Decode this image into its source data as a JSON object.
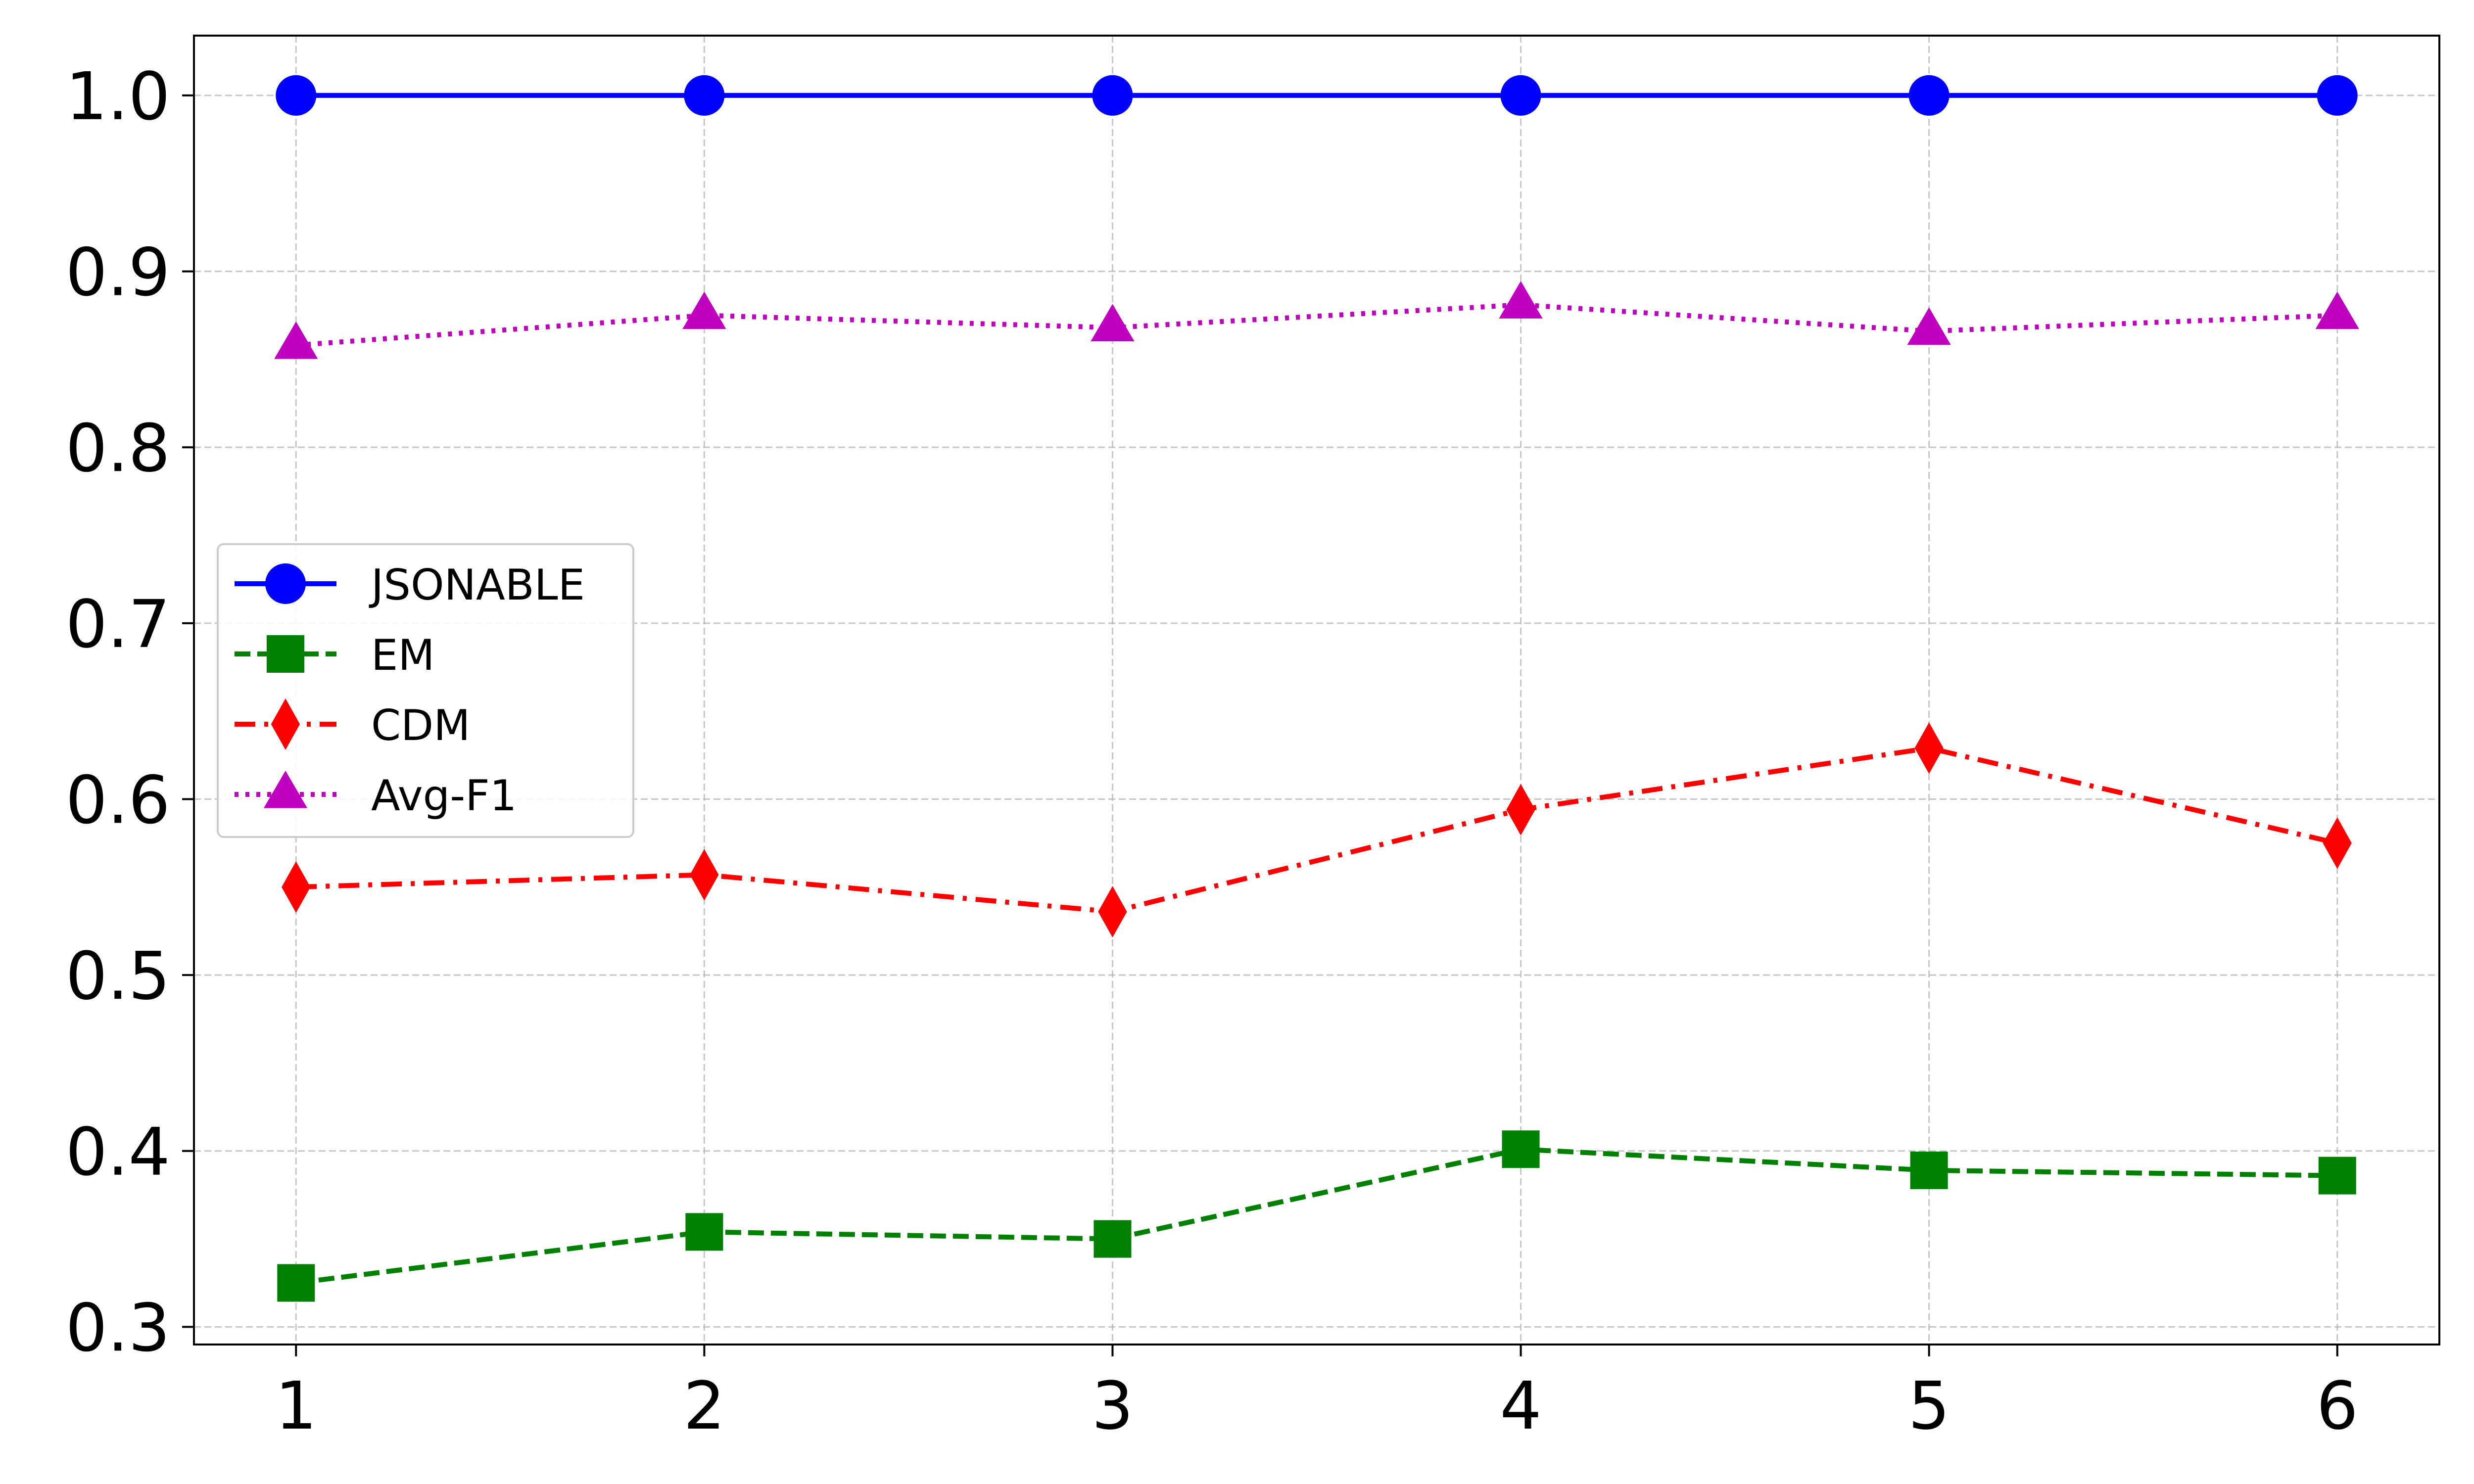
{
  "chart_data": {
    "type": "line",
    "title": "",
    "xlabel": "",
    "ylabel": "",
    "x": [
      1,
      2,
      3,
      4,
      5,
      6
    ],
    "x_ticks": [
      "1",
      "2",
      "3",
      "4",
      "5",
      "6"
    ],
    "y_ticks": [
      "0.3",
      "0.4",
      "0.5",
      "0.6",
      "0.7",
      "0.8",
      "0.9",
      "1.0"
    ],
    "xlim": [
      0.75,
      6.25
    ],
    "ylim": [
      0.29,
      1.034
    ],
    "grid": true,
    "legend_position": "center-left",
    "series": [
      {
        "name": "JSONABLE",
        "values": [
          1.0,
          1.0,
          1.0,
          1.0,
          1.0,
          1.0
        ],
        "color": "#0000ff",
        "marker": "circle",
        "line_style": "solid"
      },
      {
        "name": "EM",
        "values": [
          0.325,
          0.354,
          0.35,
          0.401,
          0.389,
          0.386
        ],
        "color": "#008000",
        "marker": "square",
        "line_style": "dashed"
      },
      {
        "name": "CDM",
        "values": [
          0.55,
          0.557,
          0.536,
          0.594,
          0.629,
          0.575
        ],
        "color": "#ff0000",
        "marker": "thin-diamond",
        "line_style": "dash-dot"
      },
      {
        "name": "Avg-F1",
        "values": [
          0.858,
          0.875,
          0.868,
          0.881,
          0.866,
          0.875
        ],
        "color": "#bf00bf",
        "marker": "triangle",
        "line_style": "dotted"
      }
    ]
  }
}
